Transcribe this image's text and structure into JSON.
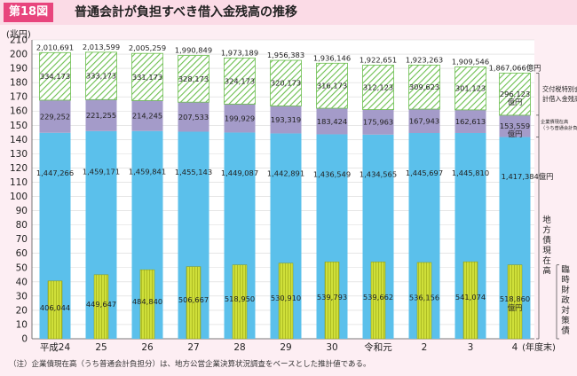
{
  "header": {
    "figure_number": "第18図",
    "title": "普通会計が負担すべき借入金残高の推移"
  },
  "note": "（注）企業債現在高（うち普通会計負担分）は、地方公営企業決算状況調査をベースとした推計値である。",
  "colors": {
    "chiho": "#5bc0eb",
    "kigyo": "#a49bc9",
    "kofuzei": "#6cbf4f",
    "rinji": "#cfdf3a",
    "header_bg": "#fbdbe6",
    "accent": "#e8457d",
    "plot_bg": "#ffffff"
  },
  "chart_data": {
    "type": "bar",
    "unit_label": "(兆円)",
    "x_suffix": "(年度末)",
    "ylim": [
      0,
      210
    ],
    "y_ticks": [
      0,
      10,
      20,
      30,
      40,
      50,
      60,
      70,
      80,
      90,
      100,
      110,
      120,
      130,
      140,
      150,
      160,
      170,
      180,
      190,
      200,
      210
    ],
    "categories": [
      "平成24",
      "25",
      "26",
      "27",
      "28",
      "29",
      "30",
      "令和元",
      "2",
      "3",
      "4"
    ],
    "totals": [
      201.0691,
      201.3599,
      200.5259,
      199.0849,
      197.3189,
      195.6383,
      193.6146,
      192.2651,
      192.3263,
      190.9546,
      186.7066
    ],
    "total_labels": [
      "2,010,691",
      "2,013,599",
      "2,005,259",
      "1,990,849",
      "1,973,189",
      "1,956,383",
      "1,936,146",
      "1,922,651",
      "1,923,263",
      "1,909,546",
      "1,867,066億円"
    ],
    "series": [
      {
        "name": "地方債現在高",
        "color_key": "chiho",
        "values": [
          144.7266,
          145.9171,
          145.9841,
          145.5143,
          144.9087,
          144.2891,
          143.6549,
          143.4565,
          144.5697,
          144.581,
          141.7384
        ],
        "labels": [
          "1,447,266",
          "1,459,171",
          "1,459,841",
          "1,455,143",
          "1,449,087",
          "1,442,891",
          "1,436,549",
          "1,434,565",
          "1,445,697",
          "1,445,810",
          "1,417,384億円"
        ]
      },
      {
        "name": "企業債現在高（うち普通会計負担分）",
        "color_key": "kigyo",
        "values": [
          22.9252,
          22.1255,
          21.4245,
          20.7533,
          19.9929,
          19.3319,
          18.3424,
          17.5963,
          16.7943,
          16.2613,
          15.3559
        ],
        "labels": [
          "229,252",
          "221,255",
          "214,245",
          "207,533",
          "199,929",
          "193,319",
          "183,424",
          "175,963",
          "167,943",
          "162,613",
          "153,559"
        ]
      },
      {
        "name": "交付税特別会計借入金残高",
        "color_key": "kofuzei",
        "values": [
          33.4173,
          33.3173,
          33.1173,
          32.8173,
          32.4173,
          32.0173,
          31.6173,
          31.2123,
          30.9623,
          30.1123,
          29.6123
        ],
        "labels": [
          "334,173",
          "333,173",
          "331,173",
          "328,173",
          "324,173",
          "320,173",
          "316,173",
          "312,123",
          "309,623",
          "301,123",
          "296,123"
        ]
      }
    ],
    "rinji": {
      "name": "臨時財政対策債",
      "color_key": "rinji",
      "values": [
        40.6044,
        44.9647,
        48.484,
        50.6667,
        51.895,
        53.091,
        53.9793,
        53.9662,
        53.6156,
        54.1074,
        51.886
      ],
      "labels": [
        "406,044",
        "449,647",
        "484,840",
        "506,667",
        "518,950",
        "530,910",
        "539,793",
        "539,662",
        "536,156",
        "541,074",
        "518,860"
      ]
    },
    "last_label_units": {
      "kigyo": "億円",
      "kofuzei": "億円",
      "rinji": "億円"
    },
    "legend": {
      "kofuzei": "交付税特別会計借入金残高",
      "kigyo_a": "企業債現在高",
      "kigyo_b": "（うち普通会計負担分）",
      "chiho": "地方債現在高",
      "rinji": "臨時財政対策債"
    }
  }
}
